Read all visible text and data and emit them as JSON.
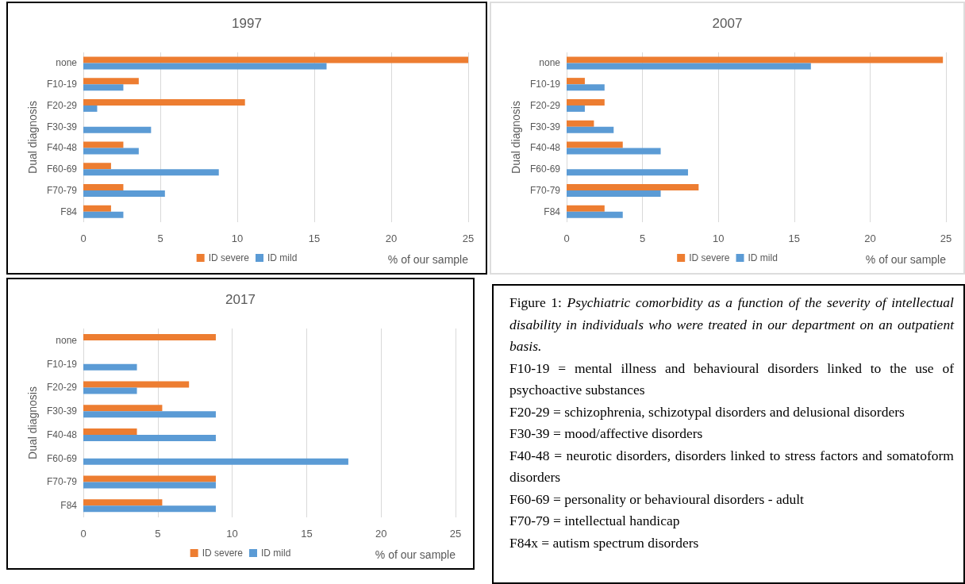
{
  "chart_data": [
    {
      "type": "bar",
      "orientation": "horizontal",
      "title": "1997",
      "ylabel": "Dual diagnosis",
      "xlabel": "% of our sample",
      "categories": [
        "none",
        "F10-19",
        "F20-29",
        "F30-39",
        "F40-48",
        "F60-69",
        "F70-79",
        "F84"
      ],
      "series": [
        {
          "name": "ID severe",
          "color": "#ed7d31",
          "values": [
            25,
            3.6,
            10.5,
            0,
            2.6,
            1.8,
            2.6,
            1.8
          ]
        },
        {
          "name": "ID mild",
          "color": "#5b9bd5",
          "values": [
            15.8,
            2.6,
            0.9,
            4.4,
            3.6,
            8.8,
            5.3,
            2.6
          ]
        }
      ],
      "xlim": [
        0,
        25
      ],
      "xticks": [
        0,
        5,
        10,
        15,
        20,
        25
      ],
      "grid": "x",
      "legend": "bottom"
    },
    {
      "type": "bar",
      "orientation": "horizontal",
      "title": "2007",
      "ylabel": "Dual diagnosis",
      "xlabel": "% of our sample",
      "categories": [
        "none",
        "F10-19",
        "F20-29",
        "F30-39",
        "F40-48",
        "F60-69",
        "F70-79",
        "F84"
      ],
      "series": [
        {
          "name": "ID severe",
          "color": "#ed7d31",
          "values": [
            24.8,
            1.2,
            2.5,
            1.8,
            3.7,
            0,
            8.7,
            2.5
          ]
        },
        {
          "name": "ID mild",
          "color": "#5b9bd5",
          "values": [
            16.1,
            2.5,
            1.2,
            3.1,
            6.2,
            8.0,
            6.2,
            3.7
          ]
        }
      ],
      "xlim": [
        0,
        25
      ],
      "xticks": [
        0,
        5,
        10,
        15,
        20,
        25
      ],
      "grid": "x",
      "legend": "bottom"
    },
    {
      "type": "bar",
      "orientation": "horizontal",
      "title": "2017",
      "ylabel": "Dual diagnosis",
      "xlabel": "% of our sample",
      "categories": [
        "none",
        "F10-19",
        "F20-29",
        "F30-39",
        "F40-48",
        "F60-69",
        "F70-79",
        "F84"
      ],
      "series": [
        {
          "name": "ID severe",
          "color": "#ed7d31",
          "values": [
            8.9,
            0,
            7.1,
            5.3,
            3.6,
            0,
            8.9,
            5.3
          ]
        },
        {
          "name": "ID mild",
          "color": "#5b9bd5",
          "values": [
            0,
            3.6,
            3.6,
            8.9,
            8.9,
            17.8,
            8.9,
            8.9
          ]
        }
      ],
      "xlim": [
        0,
        25
      ],
      "xticks": [
        0,
        5,
        10,
        15,
        20,
        25
      ],
      "grid": "x",
      "legend": "bottom"
    },
    {
      "type": "other",
      "annotations": [
        "Figure 1:",
        "Psychiatric comorbidity as a function of the severity of intellectual disability in individuals who were treated in our department on an outpatient basis.",
        "F10-19 = mental illness and behavioural disorders linked to the use of psychoactive substances",
        "F20-29 = schizophrenia, schizotypal disorders and delusional disorders",
        "F30-39 = mood/affective disorders",
        "F40-48 = neurotic disorders, disorders linked to stress factors and somatoform disorders",
        "F60-69 = personality or behavioural disorders - adult",
        "F70-79 = intellectual handicap",
        "F84x = autism spectrum disorders"
      ]
    }
  ]
}
